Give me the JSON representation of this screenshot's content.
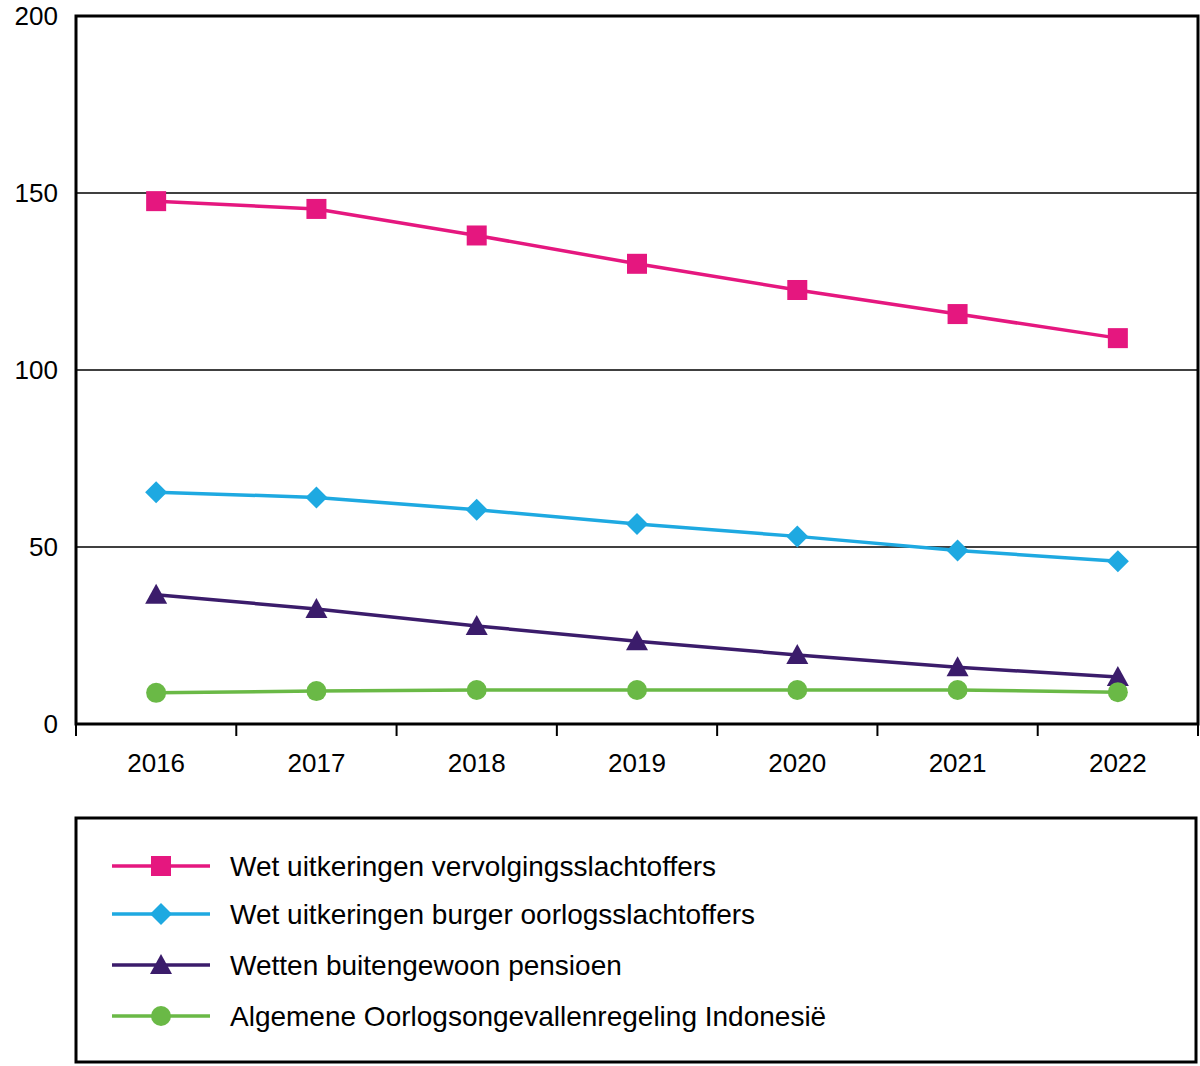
{
  "chart_data": {
    "type": "line",
    "categories": [
      "2016",
      "2017",
      "2018",
      "2019",
      "2020",
      "2021",
      "2022"
    ],
    "series": [
      {
        "name": "Wet uitkeringen vervolgingsslachtoffers",
        "color": "#e5177f",
        "marker": "square",
        "values": [
          147.7,
          145.5,
          138,
          130,
          122.6,
          115.8,
          109
        ]
      },
      {
        "name": "Wet uitkeringen burger oorlogsslachtoffers",
        "color": "#1ea9e1",
        "marker": "diamond",
        "values": [
          65.5,
          64,
          60.5,
          56.5,
          53,
          49,
          46
        ]
      },
      {
        "name": "Wetten buitengewoon pensioen",
        "color": "#3b1c6b",
        "marker": "triangle",
        "values": [
          36.5,
          32.5,
          27.7,
          23.4,
          19.5,
          16,
          13.3
        ]
      },
      {
        "name": "Algemene Oorlogsongevallenregeling Indonesië",
        "color": "#6ab946",
        "marker": "circle",
        "values": [
          8.8,
          9.3,
          9.6,
          9.6,
          9.6,
          9.6,
          9
        ]
      }
    ],
    "ylim": [
      0,
      200
    ],
    "yticks": [
      0,
      50,
      100,
      150,
      200
    ],
    "grid": true,
    "legend": "bottom"
  }
}
